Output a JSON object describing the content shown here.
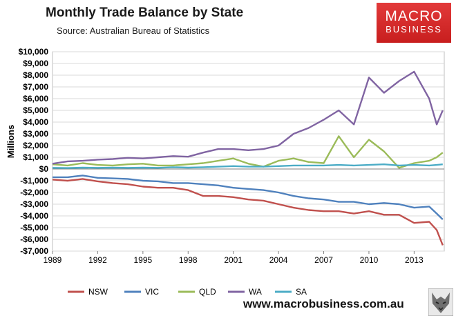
{
  "header": {
    "title": "Monthly Trade Balance by State",
    "subtitle": "Source: Australian Bureau of Statistics"
  },
  "logo": {
    "line1": "MACRO",
    "line2": "BUSINESS"
  },
  "footer": {
    "website": "www.macrobusiness.com.au"
  },
  "chart_data": {
    "type": "line",
    "title": "Monthly Trade Balance by State",
    "ylabel": "Millions",
    "xlabel": "",
    "xlim": [
      1989,
      2015
    ],
    "ylim": [
      -7000,
      10000
    ],
    "yticks": [
      -7000,
      -6000,
      -5000,
      -4000,
      -3000,
      -2000,
      -1000,
      0,
      1000,
      2000,
      3000,
      4000,
      5000,
      6000,
      7000,
      8000,
      9000,
      10000
    ],
    "ytick_labels": [
      "-$7,000",
      "-$6,000",
      "-$5,000",
      "-$4,000",
      "-$3,000",
      "-$2,000",
      "-$1,000",
      "$0",
      "$1,000",
      "$2,000",
      "$3,000",
      "$4,000",
      "$5,000",
      "$6,000",
      "$7,000",
      "$8,000",
      "$9,000",
      "$10,000"
    ],
    "xticks": [
      1989,
      1992,
      1995,
      1998,
      2001,
      2004,
      2007,
      2010,
      2013
    ],
    "xtick_labels": [
      "1989",
      "1992",
      "1995",
      "1998",
      "2001",
      "2004",
      "2007",
      "2010",
      "2013"
    ],
    "grid": true,
    "legend": "bottom",
    "series": [
      {
        "name": "NSW",
        "color": "#c0504d",
        "x": [
          1989,
          1990,
          1991,
          1992,
          1993,
          1994,
          1995,
          1996,
          1997,
          1998,
          1999,
          2000,
          2001,
          2002,
          2003,
          2004,
          2005,
          2006,
          2007,
          2008,
          2009,
          2010,
          2011,
          2012,
          2013,
          2014,
          2014.5,
          2014.9
        ],
        "y": [
          -900,
          -1000,
          -850,
          -1050,
          -1200,
          -1300,
          -1500,
          -1600,
          -1600,
          -1800,
          -2300,
          -2300,
          -2400,
          -2600,
          -2700,
          -3000,
          -3300,
          -3500,
          -3600,
          -3600,
          -3800,
          -3600,
          -3900,
          -3900,
          -4600,
          -4500,
          -5200,
          -6500
        ]
      },
      {
        "name": "VIC",
        "color": "#4f81bd",
        "x": [
          1989,
          1990,
          1991,
          1992,
          1993,
          1994,
          1995,
          1996,
          1997,
          1998,
          1999,
          2000,
          2001,
          2002,
          2003,
          2004,
          2005,
          2006,
          2007,
          2008,
          2009,
          2010,
          2011,
          2012,
          2013,
          2014,
          2014.5,
          2014.9
        ],
        "y": [
          -700,
          -700,
          -550,
          -750,
          -800,
          -850,
          -1000,
          -1050,
          -1200,
          -1200,
          -1300,
          -1400,
          -1600,
          -1700,
          -1800,
          -2000,
          -2300,
          -2500,
          -2600,
          -2800,
          -2800,
          -3000,
          -2900,
          -3000,
          -3300,
          -3200,
          -3800,
          -4300
        ]
      },
      {
        "name": "QLD",
        "color": "#9bbb59",
        "x": [
          1989,
          1990,
          1991,
          1992,
          1993,
          1994,
          1995,
          1996,
          1997,
          1998,
          1999,
          2000,
          2001,
          2002,
          2003,
          2004,
          2005,
          2006,
          2007,
          2008,
          2009,
          2010,
          2011,
          2012,
          2013,
          2014,
          2014.5,
          2014.9
        ],
        "y": [
          400,
          300,
          500,
          350,
          300,
          400,
          450,
          300,
          300,
          400,
          500,
          700,
          900,
          450,
          200,
          700,
          900,
          600,
          500,
          2800,
          1000,
          2500,
          1500,
          100,
          500,
          700,
          1000,
          1400
        ]
      },
      {
        "name": "WA",
        "color": "#8064a2",
        "x": [
          1989,
          1990,
          1991,
          1992,
          1993,
          1994,
          1995,
          1996,
          1997,
          1998,
          1999,
          2000,
          2001,
          2002,
          2003,
          2004,
          2005,
          2006,
          2007,
          2008,
          2009,
          2010,
          2011,
          2012,
          2013,
          2014,
          2014.5,
          2014.9
        ],
        "y": [
          450,
          650,
          700,
          800,
          850,
          950,
          900,
          1000,
          1100,
          1050,
          1400,
          1700,
          1700,
          1600,
          1700,
          2000,
          3000,
          3500,
          4200,
          5000,
          3800,
          7800,
          6500,
          7500,
          8300,
          6000,
          3800,
          5000
        ]
      },
      {
        "name": "SA",
        "color": "#4bacc6",
        "x": [
          1989,
          1990,
          1991,
          1992,
          1993,
          1994,
          1995,
          1996,
          1997,
          1998,
          1999,
          2000,
          2001,
          2002,
          2003,
          2004,
          2005,
          2006,
          2007,
          2008,
          2009,
          2010,
          2011,
          2012,
          2013,
          2014,
          2014.5,
          2014.9
        ],
        "y": [
          100,
          80,
          120,
          100,
          120,
          100,
          120,
          100,
          150,
          120,
          150,
          200,
          250,
          200,
          200,
          250,
          300,
          300,
          300,
          350,
          300,
          350,
          400,
          300,
          350,
          300,
          350,
          400
        ]
      }
    ]
  }
}
